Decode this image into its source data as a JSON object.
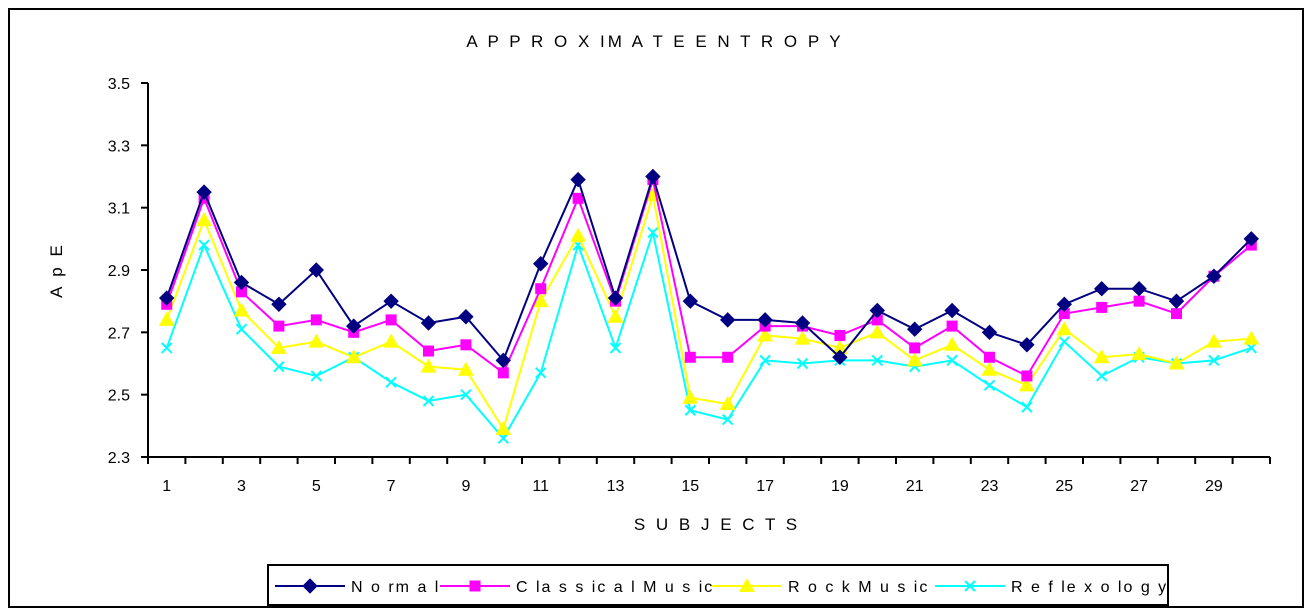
{
  "chart_data": {
    "type": "line",
    "title": "A P P R O X IM A T E  E N T R O P Y",
    "xlabel": "S U B J E C T S",
    "ylabel": "A p E",
    "x": [
      1,
      2,
      3,
      4,
      5,
      6,
      7,
      8,
      9,
      10,
      11,
      12,
      13,
      14,
      15,
      16,
      17,
      18,
      19,
      20,
      21,
      22,
      23,
      24,
      25,
      26,
      27,
      28,
      29,
      30
    ],
    "x_tick_labels": [
      "1",
      "3",
      "5",
      "7",
      "9",
      "11",
      "13",
      "15",
      "17",
      "19",
      "21",
      "23",
      "25",
      "27",
      "29"
    ],
    "y_tick_labels": [
      "2.3",
      "2.5",
      "2.7",
      "2.9",
      "3.1",
      "3.3",
      "3.5"
    ],
    "ylim": [
      2.3,
      3.5
    ],
    "grid": false,
    "legend_position": "bottom",
    "series": [
      {
        "name": "N o rm a l",
        "color": "#000080",
        "marker": "diamond",
        "values": [
          2.81,
          3.15,
          2.86,
          2.79,
          2.9,
          2.72,
          2.8,
          2.73,
          2.75,
          2.61,
          2.92,
          3.19,
          2.81,
          3.2,
          2.8,
          2.74,
          2.74,
          2.73,
          2.62,
          2.77,
          2.71,
          2.77,
          2.7,
          2.66,
          2.79,
          2.84,
          2.84,
          2.8,
          2.88,
          3.0
        ]
      },
      {
        "name": "C la s s ic a l M u s ic",
        "color": "#ff00ff",
        "marker": "square",
        "values": [
          2.79,
          3.13,
          2.83,
          2.72,
          2.74,
          2.7,
          2.74,
          2.64,
          2.66,
          2.57,
          2.84,
          3.13,
          2.8,
          3.19,
          2.62,
          2.62,
          2.72,
          2.72,
          2.69,
          2.74,
          2.65,
          2.72,
          2.62,
          2.56,
          2.76,
          2.78,
          2.8,
          2.76,
          2.88,
          2.98
        ]
      },
      {
        "name": "R o c k  M u s ic",
        "color": "#ffff00",
        "marker": "triangle",
        "values": [
          2.74,
          3.06,
          2.77,
          2.65,
          2.67,
          2.62,
          2.67,
          2.59,
          2.58,
          2.39,
          2.8,
          3.01,
          2.75,
          3.14,
          2.49,
          2.47,
          2.69,
          2.68,
          2.65,
          2.7,
          2.61,
          2.66,
          2.58,
          2.53,
          2.71,
          2.62,
          2.63,
          2.6,
          2.67,
          2.68
        ]
      },
      {
        "name": "R e f le x o lo g y",
        "color": "#00ffff",
        "marker": "x",
        "values": [
          2.65,
          2.98,
          2.71,
          2.59,
          2.56,
          2.62,
          2.54,
          2.48,
          2.5,
          2.36,
          2.57,
          2.98,
          2.65,
          3.02,
          2.45,
          2.42,
          2.61,
          2.6,
          2.61,
          2.61,
          2.59,
          2.61,
          2.53,
          2.46,
          2.67,
          2.56,
          2.62,
          2.6,
          2.61,
          2.65
        ]
      }
    ]
  }
}
